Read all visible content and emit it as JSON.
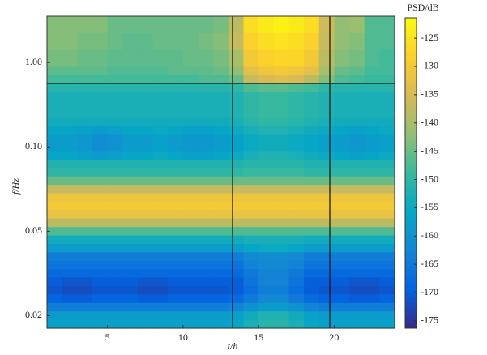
{
  "chart_data": {
    "type": "heatmap",
    "xlabel": "t/h",
    "ylabel": "f/Hz",
    "xbins": [
      1,
      2,
      3,
      4,
      5,
      6,
      7,
      8,
      9,
      10,
      11,
      12,
      13,
      14,
      15,
      16,
      17,
      18,
      19,
      20,
      21,
      22,
      23,
      24
    ],
    "xlim": [
      1,
      24
    ],
    "xticks": [
      5,
      10,
      15,
      20
    ],
    "rows": [
      null,
      null,
      null,
      null,
      null,
      "1.00",
      null,
      null,
      null,
      null,
      null,
      null,
      null,
      null,
      null,
      "0.10",
      null,
      null,
      null,
      null,
      null,
      null,
      null,
      null,
      null,
      "0.05",
      null,
      null,
      null,
      null,
      null,
      null,
      null,
      null,
      null,
      "0.02",
      null
    ],
    "z": [
      [
        -143,
        -143,
        -143,
        -143,
        -145,
        -145,
        -145,
        -145,
        -145,
        -145,
        -145,
        -144,
        -138,
        -126,
        -124,
        -123,
        -124,
        -126,
        -136,
        -142,
        -141,
        -147,
        -147
      ],
      [
        -143,
        -143,
        -143,
        -143,
        -145,
        -145,
        -145,
        -145,
        -145,
        -145,
        -145,
        -144,
        -138,
        -126,
        -124,
        -123,
        -124,
        -126,
        -136,
        -142,
        -141,
        -147,
        -147
      ],
      [
        -143,
        -143,
        -144,
        -144,
        -145,
        -146,
        -146,
        -145,
        -145,
        -145,
        -144,
        -143,
        -137,
        -128,
        -126,
        -125,
        -126,
        -128,
        -137,
        -142,
        -143,
        -147,
        -147
      ],
      [
        -143,
        -143,
        -144,
        -144,
        -145,
        -146,
        -146,
        -145,
        -145,
        -145,
        -144,
        -143,
        -137,
        -128,
        -126,
        -125,
        -126,
        -128,
        -137,
        -142,
        -143,
        -147,
        -147
      ],
      [
        -144,
        -144,
        -145,
        -145,
        -146,
        -146,
        -146,
        -146,
        -146,
        -145,
        -145,
        -144,
        -140,
        -130,
        -128,
        -127,
        -127,
        -130,
        -138,
        -143,
        -144,
        -147,
        -148
      ],
      [
        -144,
        -144,
        -145,
        -145,
        -146,
        -146,
        -146,
        -146,
        -146,
        -145,
        -145,
        -144,
        -140,
        -130,
        -128,
        -127,
        -127,
        -130,
        -138,
        -143,
        -144,
        -147,
        -148
      ],
      [
        -146,
        -146,
        -146,
        -146,
        -147,
        -147,
        -147,
        -147,
        -146,
        -146,
        -146,
        -145,
        -142,
        -133,
        -131,
        -130,
        -131,
        -133,
        -140,
        -145,
        -146,
        -148,
        -148
      ],
      [
        -148,
        -148,
        -148,
        -148,
        -148,
        -148,
        -148,
        -148,
        -148,
        -148,
        -147,
        -147,
        -145,
        -137,
        -135,
        -134,
        -135,
        -138,
        -143,
        -147,
        -148,
        -149,
        -149
      ],
      [
        -151,
        -151,
        -151,
        -151,
        -151,
        -151,
        -151,
        -151,
        -151,
        -151,
        -151,
        -151,
        -150,
        -147,
        -146,
        -146,
        -147,
        -148,
        -150,
        -151,
        -151,
        -151,
        -151
      ],
      [
        -153,
        -153,
        -153,
        -153,
        -153,
        -153,
        -153,
        -153,
        -153,
        -153,
        -153,
        -153,
        -152,
        -150,
        -149,
        -149,
        -150,
        -151,
        -152,
        -153,
        -153,
        -153,
        -153
      ],
      [
        -153,
        -153,
        -153,
        -153,
        -153,
        -153,
        -153,
        -153,
        -153,
        -153,
        -153,
        -153,
        -152,
        -150,
        -149,
        -149,
        -150,
        -151,
        -152,
        -153,
        -153,
        -153,
        -153
      ],
      [
        -153,
        -153,
        -153,
        -153,
        -153,
        -153,
        -153,
        -153,
        -153,
        -153,
        -153,
        -153,
        -152,
        -150,
        -149,
        -149,
        -150,
        -151,
        -152,
        -153,
        -153,
        -153,
        -153
      ],
      [
        -154,
        -154,
        -154,
        -154,
        -154,
        -154,
        -154,
        -154,
        -154,
        -154,
        -154,
        -154,
        -153,
        -151,
        -150,
        -150,
        -151,
        -152,
        -153,
        -154,
        -154,
        -154,
        -154
      ],
      [
        -156,
        -156,
        -157,
        -158,
        -157,
        -156,
        -156,
        -155,
        -156,
        -157,
        -157,
        -156,
        -155,
        -153,
        -152,
        -152,
        -153,
        -154,
        -155,
        -156,
        -157,
        -156,
        -155
      ],
      [
        -158,
        -158,
        -159,
        -161,
        -160,
        -158,
        -158,
        -157,
        -158,
        -159,
        -159,
        -158,
        -157,
        -155,
        -154,
        -154,
        -155,
        -156,
        -157,
        -158,
        -159,
        -158,
        -157
      ],
      [
        -158,
        -158,
        -159,
        -161,
        -160,
        -158,
        -158,
        -157,
        -158,
        -159,
        -159,
        -158,
        -157,
        -155,
        -154,
        -154,
        -155,
        -156,
        -157,
        -158,
        -159,
        -158,
        -157
      ],
      [
        -156,
        -156,
        -157,
        -158,
        -157,
        -156,
        -156,
        -155,
        -156,
        -157,
        -157,
        -156,
        -155,
        -153,
        -152,
        -152,
        -153,
        -154,
        -155,
        -156,
        -157,
        -156,
        -155
      ],
      [
        -152,
        -152,
        -152,
        -152,
        -152,
        -152,
        -152,
        -152,
        -152,
        -152,
        -152,
        -152,
        -152,
        -151,
        -151,
        -151,
        -151,
        -152,
        -152,
        -152,
        -152,
        -152,
        -152
      ],
      [
        -150,
        -150,
        -150,
        -150,
        -150,
        -150,
        -150,
        -150,
        -150,
        -150,
        -150,
        -150,
        -150,
        -149,
        -149,
        -149,
        -149,
        -150,
        -150,
        -150,
        -150,
        -150,
        -150
      ],
      [
        -145,
        -145,
        -145,
        -145,
        -145,
        -145,
        -145,
        -145,
        -145,
        -145,
        -145,
        -145,
        -145,
        -145,
        -145,
        -145,
        -145,
        -145,
        -145,
        -145,
        -145,
        -145,
        -145
      ],
      [
        -137,
        -137,
        -137,
        -137,
        -137,
        -137,
        -137,
        -137,
        -137,
        -137,
        -137,
        -137,
        -137,
        -137,
        -137,
        -137,
        -137,
        -137,
        -137,
        -137,
        -137,
        -137,
        -137
      ],
      [
        -131,
        -131,
        -131,
        -131,
        -131,
        -131,
        -131,
        -131,
        -131,
        -131,
        -131,
        -131,
        -131,
        -131,
        -131,
        -131,
        -131,
        -131,
        -131,
        -131,
        -131,
        -131,
        -131
      ],
      [
        -130,
        -130,
        -130,
        -130,
        -130,
        -130,
        -130,
        -130,
        -130,
        -130,
        -130,
        -130,
        -130,
        -130,
        -130,
        -130,
        -130,
        -130,
        -130,
        -130,
        -130,
        -130,
        -130
      ],
      [
        -132,
        -132,
        -132,
        -132,
        -132,
        -132,
        -132,
        -132,
        -132,
        -132,
        -132,
        -132,
        -132,
        -132,
        -132,
        -132,
        -132,
        -132,
        -132,
        -132,
        -132,
        -132,
        -132
      ],
      [
        -138,
        -138,
        -138,
        -138,
        -138,
        -138,
        -138,
        -138,
        -138,
        -138,
        -138,
        -138,
        -138,
        -138,
        -138,
        -138,
        -138,
        -138,
        -138,
        -138,
        -138,
        -138,
        -138
      ],
      [
        -147,
        -147,
        -147,
        -147,
        -147,
        -147,
        -147,
        -147,
        -147,
        -147,
        -147,
        -147,
        -147,
        -147,
        -147,
        -147,
        -147,
        -147,
        -147,
        -147,
        -147,
        -147,
        -147
      ],
      [
        -154,
        -154,
        -154,
        -154,
        -154,
        -154,
        -154,
        -154,
        -154,
        -154,
        -154,
        -154,
        -154,
        -153,
        -153,
        -153,
        -153,
        -154,
        -154,
        -154,
        -154,
        -154,
        -154
      ],
      [
        -158,
        -158,
        -158,
        -158,
        -158,
        -158,
        -158,
        -158,
        -158,
        -158,
        -158,
        -158,
        -158,
        -156,
        -155,
        -155,
        -156,
        -158,
        -158,
        -158,
        -158,
        -158,
        -158
      ],
      [
        -164,
        -164,
        -164,
        -164,
        -164,
        -164,
        -164,
        -164,
        -164,
        -164,
        -164,
        -164,
        -164,
        -162,
        -161,
        -161,
        -162,
        -164,
        -164,
        -164,
        -164,
        -164,
        -164
      ],
      [
        -166,
        -166,
        -166,
        -166,
        -166,
        -166,
        -166,
        -166,
        -166,
        -166,
        -166,
        -166,
        -166,
        -163,
        -162,
        -162,
        -163,
        -166,
        -166,
        -166,
        -166,
        -166,
        -166
      ],
      [
        -168,
        -168,
        -168,
        -168,
        -168,
        -168,
        -168,
        -168,
        -168,
        -168,
        -168,
        -168,
        -168,
        -165,
        -163,
        -163,
        -165,
        -168,
        -168,
        -168,
        -168,
        -168,
        -168
      ],
      [
        -170,
        -171,
        -171,
        -170,
        -170,
        -170,
        -171,
        -171,
        -170,
        -170,
        -170,
        -170,
        -170,
        -166,
        -163,
        -163,
        -166,
        -170,
        -170,
        -170,
        -171,
        -171,
        -170
      ],
      [
        -171,
        -172,
        -172,
        -171,
        -171,
        -171,
        -172,
        -172,
        -171,
        -171,
        -171,
        -171,
        -170,
        -167,
        -164,
        -164,
        -167,
        -170,
        -171,
        -171,
        -172,
        -172,
        -171
      ],
      [
        -169,
        -170,
        -170,
        -169,
        -169,
        -169,
        -170,
        -170,
        -169,
        -169,
        -169,
        -169,
        -168,
        -165,
        -162,
        -162,
        -165,
        -168,
        -169,
        -169,
        -170,
        -170,
        -169
      ],
      [
        -164,
        -164,
        -164,
        -164,
        -164,
        -164,
        -164,
        -164,
        -164,
        -164,
        -164,
        -164,
        -163,
        -160,
        -158,
        -158,
        -160,
        -163,
        -164,
        -164,
        -164,
        -164,
        -164
      ],
      [
        -158,
        -158,
        -158,
        -158,
        -158,
        -158,
        -158,
        -158,
        -158,
        -158,
        -158,
        -158,
        -157,
        -154,
        -152,
        -152,
        -154,
        -157,
        -158,
        -158,
        -158,
        -158,
        -158
      ],
      [
        -157,
        -157,
        -157,
        -157,
        -157,
        -157,
        -157,
        -157,
        -157,
        -157,
        -157,
        -157,
        -156,
        -153,
        -151,
        -151,
        -153,
        -156,
        -157,
        -157,
        -157,
        -157,
        -157
      ]
    ],
    "colorbar": {
      "title": "PSD/dB",
      "clim": [
        -176.3,
        -121.4
      ],
      "ticks": [
        -125,
        -130,
        -135,
        -140,
        -145,
        -150,
        -155,
        -160,
        -165,
        -170,
        -175
      ]
    },
    "colormap": [
      "#352a87",
      "#0363e1",
      "#1485d4",
      "#06a7c6",
      "#38b99e",
      "#92bf73",
      "#d9ba56",
      "#fcce2e",
      "#f9fb0e"
    ]
  }
}
